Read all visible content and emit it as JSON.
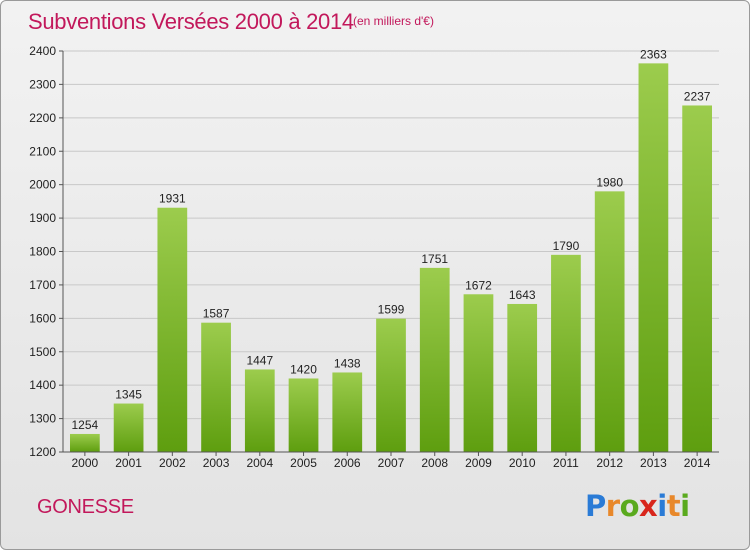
{
  "header": {
    "title": "Subventions Versées 2000 à 2014",
    "subtitle": "(en milliers d'€)"
  },
  "footer": {
    "city": "GONESSE",
    "logo": "Proxiti"
  },
  "colors": {
    "title": "#c2185b",
    "bar_top": "#9ccc4d",
    "bar_bottom": "#5e9e0f",
    "grid": "#c8c8c8"
  },
  "chart_data": {
    "type": "bar",
    "categories": [
      "2000",
      "2001",
      "2002",
      "2003",
      "2004",
      "2005",
      "2006",
      "2007",
      "2008",
      "2009",
      "2010",
      "2011",
      "2012",
      "2013",
      "2014"
    ],
    "values": [
      1254,
      1345,
      1931,
      1587,
      1447,
      1420,
      1438,
      1599,
      1751,
      1672,
      1643,
      1790,
      1980,
      2363,
      2237
    ],
    "ylim": [
      1200,
      2400
    ],
    "yticks": [
      1200,
      1300,
      1400,
      1500,
      1600,
      1700,
      1800,
      1900,
      2000,
      2100,
      2200,
      2300,
      2400
    ],
    "grid": true,
    "title": "Subventions Versées 2000 à 2014",
    "xlabel": "",
    "ylabel": ""
  }
}
